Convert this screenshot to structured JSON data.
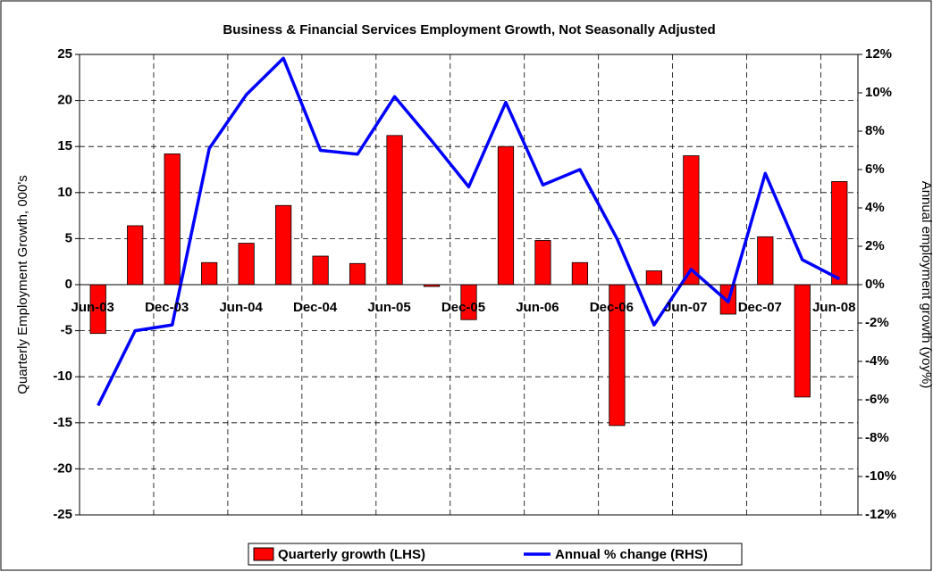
{
  "chart_data": {
    "type": "bar_line",
    "title": "Business & Financial Services Employment Growth, Not Seasonally Adjusted",
    "y_label": "Quarterly Employment Growth, 000's",
    "y2_label": "Annual employment growth (yoy%)",
    "categories": [
      "Jun-03",
      null,
      "Dec-03",
      null,
      "Jun-04",
      null,
      "Dec-04",
      null,
      "Jun-05",
      null,
      "Dec-05",
      null,
      "Jun-06",
      null,
      "Dec-06",
      null,
      "Jun-07",
      null,
      "Dec-07",
      null,
      "Jun-08"
    ],
    "series": [
      {
        "name": "Quarterly growth (LHS)",
        "color": "#ff0000",
        "kind": "bar",
        "axis": "y",
        "values": [
          -5.3,
          6.4,
          14.2,
          2.4,
          4.5,
          8.6,
          3.1,
          2.3,
          16.2,
          -0.2,
          -3.8,
          15.0,
          4.8,
          2.4,
          -15.3,
          1.5,
          14.0,
          -3.2,
          5.2,
          -12.2,
          11.2
        ]
      },
      {
        "name": "Annual % change (RHS)",
        "color": "#0000ff",
        "kind": "line",
        "axis": "y2",
        "values": [
          -6.3,
          -2.4,
          -2.1,
          7.1,
          9.9,
          11.8,
          7.0,
          6.8,
          9.8,
          7.5,
          5.1,
          9.5,
          5.2,
          6.0,
          2.4,
          -2.1,
          0.8,
          -0.9,
          5.8,
          1.3,
          0.3
        ]
      }
    ],
    "ylim": [
      -25,
      25
    ],
    "yticks": [
      -25,
      -20,
      -15,
      -10,
      -5,
      0,
      5,
      10,
      15,
      20,
      25
    ],
    "y2lim": [
      -12,
      12
    ],
    "y2ticks": [
      {
        "value": -12,
        "label": "-12%"
      },
      {
        "value": -10,
        "label": "-10%"
      },
      {
        "value": -8,
        "label": "-8%"
      },
      {
        "value": -6,
        "label": "-6%"
      },
      {
        "value": -4,
        "label": "-4%"
      },
      {
        "value": -2,
        "label": "-2%"
      },
      {
        "value": 0,
        "label": "0%"
      },
      {
        "value": 2,
        "label": "2%"
      },
      {
        "value": 4,
        "label": "4%"
      },
      {
        "value": 6,
        "label": "6%"
      },
      {
        "value": 8,
        "label": "8%"
      },
      {
        "value": 10,
        "label": "10%"
      },
      {
        "value": 12,
        "label": "12%"
      }
    ],
    "grid": true,
    "legend": "bottom"
  }
}
